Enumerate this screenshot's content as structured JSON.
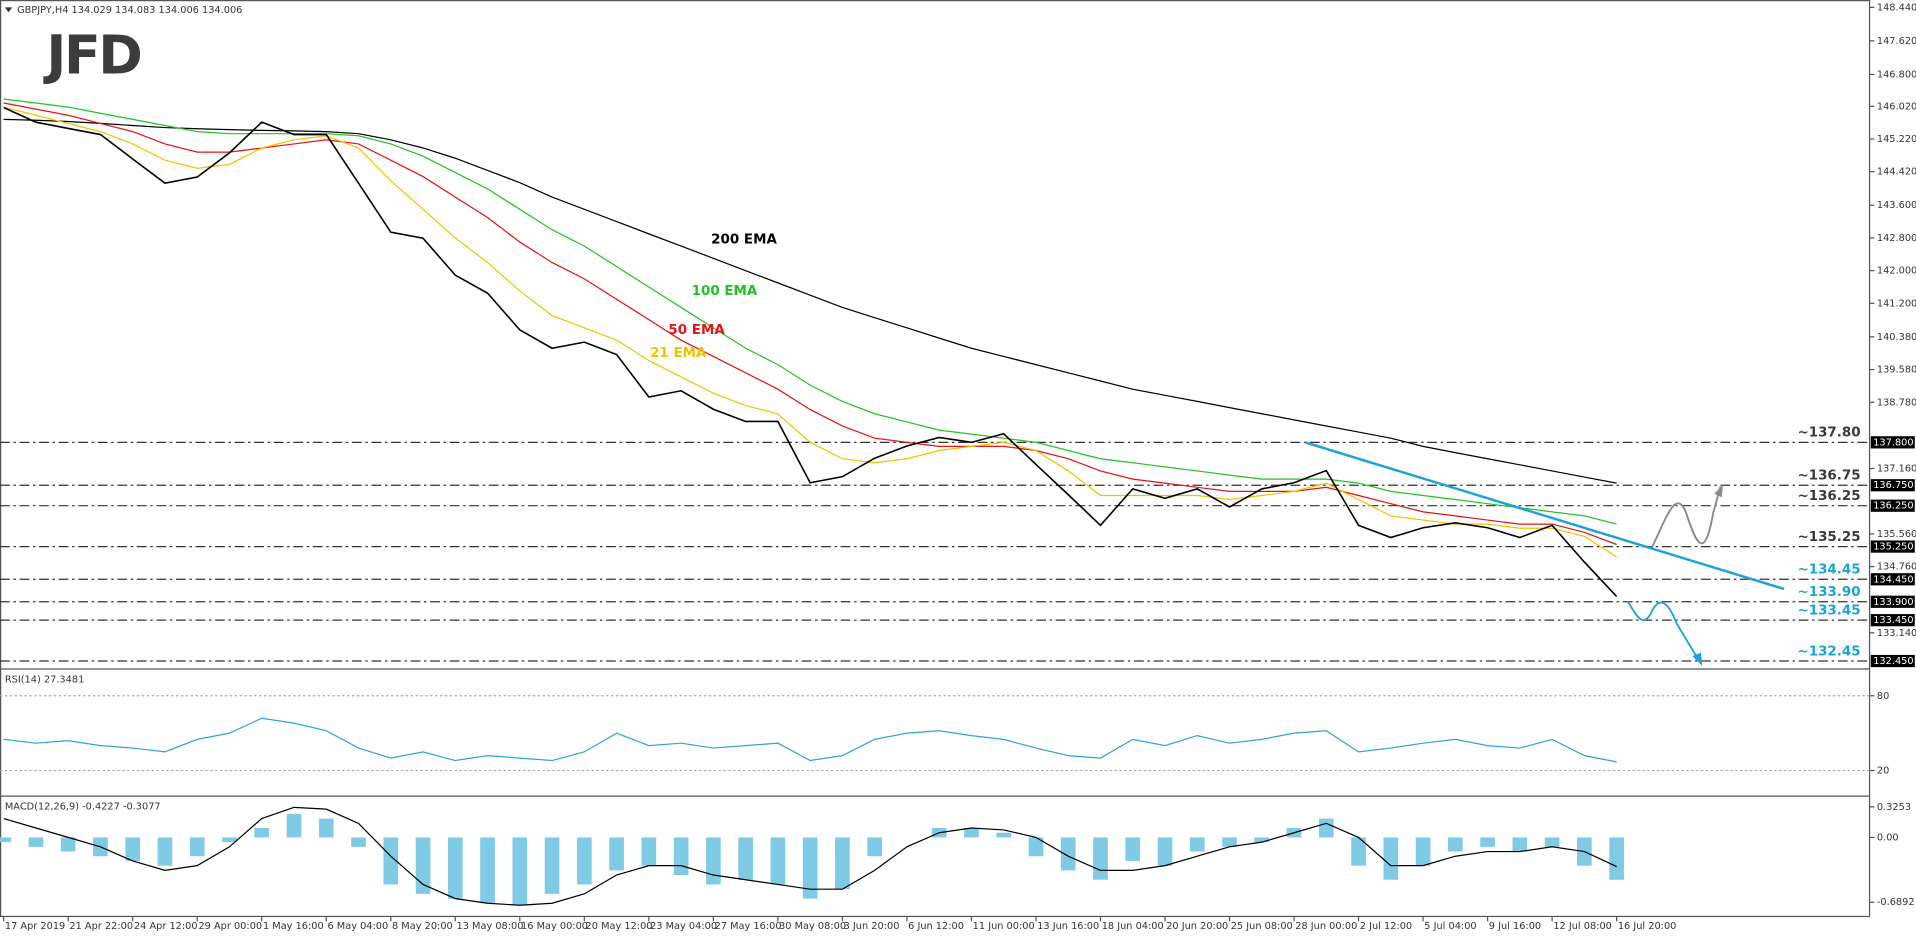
{
  "logo": "JFD",
  "chart_data": [
    {
      "type": "line",
      "title": "GBPJPY,H4  134.029 134.083 134.006 134.006",
      "categories": [
        "17 Apr 2019",
        null,
        "21 Apr 22:00",
        null,
        "24 Apr 12:00",
        null,
        "29 Apr 00:00",
        null,
        "1 May 16:00",
        null,
        "6 May 04:00",
        null,
        "8 May 20:00",
        null,
        "13 May 08:00",
        null,
        "16 May 00:00",
        null,
        "20 May 12:00",
        null,
        "23 May 04:00",
        null,
        "27 May 16:00",
        null,
        "30 May 08:00",
        null,
        "3 Jun 20:00",
        null,
        "6 Jun 12:00",
        null,
        "11 Jun 00:00",
        null,
        "13 Jun 16:00",
        null,
        "18 Jun 04:00",
        null,
        "20 Jun 20:00",
        null,
        "25 Jun 08:00",
        null,
        "28 Jun 00:00",
        null,
        "2 Jul 12:00",
        null,
        "5 Jul 04:00",
        null,
        "9 Jul 16:00",
        null,
        "12 Jul 08:00",
        null,
        "16 Jul 20:00"
      ],
      "values": [
        145.99,
        145.63,
        145.48,
        145.33,
        144.73,
        144.14,
        144.29,
        144.88,
        145.63,
        145.33,
        145.33,
        144.14,
        142.94,
        142.79,
        141.89,
        141.45,
        140.55,
        140.1,
        140.25,
        139.95,
        138.91,
        139.06,
        138.61,
        138.31,
        138.31,
        136.81,
        136.96,
        137.41,
        137.71,
        137.92,
        137.8,
        138.01,
        137.26,
        136.52,
        135.77,
        136.66,
        136.43,
        136.66,
        136.22,
        136.66,
        136.81,
        137.11,
        135.77,
        135.47,
        135.71,
        135.83,
        135.71,
        135.47,
        135.77,
        134.87,
        134.03
      ],
      "color": "#000000",
      "series": [
        {
          "name": "200 EMA",
          "color": "#000000",
          "values": [
            145.7,
            145.68,
            145.65,
            145.6,
            145.55,
            145.5,
            145.47,
            145.45,
            145.43,
            145.42,
            145.4,
            145.35,
            145.2,
            145.0,
            144.75,
            144.45,
            144.15,
            143.8,
            143.5,
            143.2,
            142.9,
            142.6,
            142.3,
            142.0,
            141.7,
            141.4,
            141.1,
            140.85,
            140.6,
            140.35,
            140.1,
            139.9,
            139.7,
            139.5,
            139.3,
            139.1,
            138.95,
            138.8,
            138.65,
            138.5,
            138.35,
            138.2,
            138.05,
            137.9,
            137.7,
            137.55,
            137.4,
            137.25,
            137.1,
            136.95,
            136.8
          ]
        },
        {
          "name": "100 EMA",
          "color": "#22c322",
          "values": [
            146.2,
            146.1,
            146.0,
            145.85,
            145.7,
            145.55,
            145.4,
            145.35,
            145.35,
            145.35,
            145.35,
            145.3,
            145.1,
            144.8,
            144.4,
            144.0,
            143.5,
            143.0,
            142.6,
            142.1,
            141.6,
            141.1,
            140.6,
            140.1,
            139.7,
            139.2,
            138.8,
            138.5,
            138.3,
            138.1,
            138.0,
            137.9,
            137.8,
            137.6,
            137.4,
            137.3,
            137.2,
            137.1,
            137.0,
            136.9,
            136.9,
            136.9,
            136.8,
            136.6,
            136.5,
            136.4,
            136.3,
            136.2,
            136.1,
            136.0,
            135.8
          ]
        },
        {
          "name": "50 EMA",
          "color": "#e31414",
          "values": [
            146.1,
            145.95,
            145.8,
            145.6,
            145.4,
            145.1,
            144.9,
            144.9,
            145.0,
            145.1,
            145.2,
            145.1,
            144.7,
            144.3,
            143.8,
            143.3,
            142.7,
            142.2,
            141.8,
            141.3,
            140.8,
            140.3,
            139.9,
            139.5,
            139.1,
            138.6,
            138.2,
            137.9,
            137.8,
            137.7,
            137.7,
            137.7,
            137.6,
            137.4,
            137.1,
            136.9,
            136.8,
            136.7,
            136.6,
            136.6,
            136.6,
            136.7,
            136.5,
            136.3,
            136.1,
            136.0,
            135.9,
            135.8,
            135.8,
            135.6,
            135.3
          ]
        },
        {
          "name": "21 EMA",
          "color": "#f2c200",
          "values": [
            146.0,
            145.8,
            145.6,
            145.4,
            145.1,
            144.7,
            144.5,
            144.6,
            145.0,
            145.2,
            145.3,
            145.0,
            144.2,
            143.5,
            142.8,
            142.2,
            141.5,
            140.9,
            140.6,
            140.3,
            139.8,
            139.4,
            139.0,
            138.7,
            138.5,
            137.8,
            137.4,
            137.3,
            137.4,
            137.6,
            137.7,
            137.8,
            137.6,
            137.1,
            136.5,
            136.5,
            136.5,
            136.5,
            136.4,
            136.5,
            136.6,
            136.8,
            136.4,
            136.0,
            135.9,
            135.8,
            135.8,
            135.7,
            135.7,
            135.5,
            135.0
          ]
        }
      ],
      "ylim": [
        132.3,
        148.62
      ],
      "yticks": [
        {
          "value": 148.44,
          "label": "148.440"
        },
        {
          "value": 147.62,
          "label": "147.620"
        },
        {
          "value": 146.8,
          "label": "146.800"
        },
        {
          "value": 146.02,
          "label": "146.020"
        },
        {
          "value": 145.22,
          "label": "145.220"
        },
        {
          "value": 144.42,
          "label": "144.420"
        },
        {
          "value": 143.6,
          "label": "143.600"
        },
        {
          "value": 142.8,
          "label": "142.800"
        },
        {
          "value": 142,
          "label": "142.000"
        },
        {
          "value": 141.2,
          "label": "141.200"
        },
        {
          "value": 140.38,
          "label": "140.380"
        },
        {
          "value": 139.58,
          "label": "139.580"
        },
        {
          "value": 138.78,
          "label": "138.780"
        },
        {
          "value": 137.16,
          "label": "137.160"
        },
        {
          "value": 135.56,
          "label": "135.560"
        },
        {
          "value": 134.76,
          "label": "134.760"
        },
        {
          "value": 133.14,
          "label": "133.140"
        }
      ],
      "levels": [
        {
          "value": 137.8,
          "label": "~137.80",
          "box_label": "137.800",
          "color": "#3a3a3a"
        },
        {
          "value": 136.75,
          "label": "~136.75",
          "box_label": "136.750",
          "color": "#3a3a3a"
        },
        {
          "value": 136.25,
          "label": "~136.25",
          "box_label": "136.250",
          "color": "#3a3a3a"
        },
        {
          "value": 135.25,
          "label": "~135.25",
          "box_label": "135.250",
          "color": "#3a3a3a"
        },
        {
          "value": 134.45,
          "label": "~134.45",
          "box_label": "134.450",
          "color": "#1ba3d6"
        },
        {
          "value": 133.9,
          "label": "~133.90",
          "box_label": "133.900",
          "color": "#1ba3d6"
        },
        {
          "value": 133.45,
          "label": "~133.45",
          "box_label": "133.450",
          "color": "#1ba3d6"
        },
        {
          "value": 132.45,
          "label": "~132.45",
          "box_label": "132.450",
          "color": "#1ba3d6"
        }
      ]
    },
    {
      "type": "line",
      "title": "RSI(14) 27.3481",
      "values": [
        45,
        42,
        44,
        40,
        38,
        35,
        45,
        50,
        62,
        58,
        52,
        38,
        30,
        35,
        28,
        32,
        30,
        28,
        35,
        50,
        40,
        42,
        38,
        40,
        42,
        28,
        32,
        45,
        50,
        52,
        48,
        45,
        38,
        32,
        30,
        45,
        40,
        48,
        42,
        45,
        50,
        52,
        35,
        38,
        42,
        45,
        40,
        38,
        45,
        32,
        27
      ],
      "color": "#2ea3d8",
      "ylim": [
        0,
        100
      ],
      "yticks": [
        80,
        20
      ],
      "grid": true
    },
    {
      "type": "bar",
      "title": "MACD(12,26,9) -0.4227 -0.3077",
      "values": [
        -0.05,
        -0.1,
        -0.15,
        -0.2,
        -0.25,
        -0.3,
        -0.2,
        -0.05,
        0.1,
        0.25,
        0.2,
        -0.1,
        -0.5,
        -0.6,
        -0.65,
        -0.7,
        -0.72,
        -0.6,
        -0.5,
        -0.35,
        -0.3,
        -0.4,
        -0.5,
        -0.45,
        -0.5,
        -0.65,
        -0.55,
        -0.2,
        0.0,
        0.1,
        0.1,
        0.05,
        -0.2,
        -0.35,
        -0.45,
        -0.25,
        -0.3,
        -0.15,
        -0.1,
        -0.05,
        0.1,
        0.2,
        -0.3,
        -0.45,
        -0.3,
        -0.15,
        -0.1,
        -0.15,
        -0.1,
        -0.3,
        -0.45
      ],
      "color": "#7fcbe6",
      "signal": [
        0.2,
        0.1,
        0.0,
        -0.1,
        -0.25,
        -0.35,
        -0.3,
        -0.1,
        0.2,
        0.32,
        0.3,
        0.15,
        -0.2,
        -0.5,
        -0.65,
        -0.7,
        -0.72,
        -0.7,
        -0.6,
        -0.4,
        -0.3,
        -0.3,
        -0.4,
        -0.45,
        -0.5,
        -0.55,
        -0.55,
        -0.35,
        -0.1,
        0.05,
        0.1,
        0.08,
        0.0,
        -0.2,
        -0.35,
        -0.35,
        -0.3,
        -0.2,
        -0.1,
        -0.05,
        0.05,
        0.15,
        0.0,
        -0.3,
        -0.3,
        -0.2,
        -0.15,
        -0.15,
        -0.1,
        -0.15,
        -0.31
      ],
      "signal_color": "#000000",
      "ylim": [
        -0.84,
        0.42
      ],
      "yticks": [
        0.3253,
        {
          "value": 0,
          "label": "0.00"
        },
        -0.6892
      ]
    }
  ]
}
